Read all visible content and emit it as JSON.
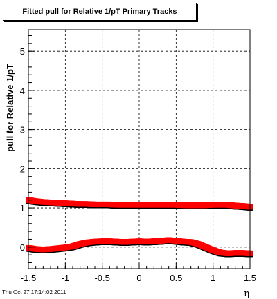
{
  "chart_data": {
    "type": "scatter",
    "title": "Fitted pull for Relative 1/pT  Primary Tracks",
    "xlabel": "η",
    "ylabel": "pull for Relative 1/pT",
    "xlim": [
      -1.5,
      1.5
    ],
    "ylim": [
      -0.55,
      5.55
    ],
    "xticks": [
      -1.5,
      -1,
      -0.5,
      0,
      0.5,
      1,
      1.5
    ],
    "xtick_labels": [
      "-1.5",
      "-1",
      "-0.5",
      "0",
      "0.5",
      "1",
      "1.5"
    ],
    "yticks": [
      0,
      1,
      2,
      3,
      4,
      5
    ],
    "ytick_labels": [
      "0",
      "1",
      "2",
      "3",
      "4",
      "5"
    ],
    "grid": true,
    "series": [
      {
        "color": "#ff0000",
        "x": [
          -1.5,
          -1.4,
          -1.3,
          -1.2,
          -1.1,
          -1.0,
          -0.9,
          -0.8,
          -0.7,
          -0.6,
          -0.5,
          -0.4,
          -0.3,
          -0.2,
          -0.1,
          0.0,
          0.1,
          0.2,
          0.3,
          0.4,
          0.5,
          0.6,
          0.7,
          0.8,
          0.9,
          1.0,
          1.1,
          1.2,
          1.3,
          1.4,
          1.5
        ],
        "values": [
          1.2,
          1.17,
          1.15,
          1.14,
          1.13,
          1.12,
          1.11,
          1.1,
          1.1,
          1.09,
          1.09,
          1.09,
          1.08,
          1.08,
          1.08,
          1.08,
          1.08,
          1.08,
          1.08,
          1.08,
          1.08,
          1.07,
          1.07,
          1.07,
          1.07,
          1.08,
          1.08,
          1.08,
          1.06,
          1.05,
          1.03
        ]
      },
      {
        "color": "#ff0000",
        "x": [
          -1.5,
          -1.4,
          -1.3,
          -1.2,
          -1.1,
          -1.0,
          -0.9,
          -0.8,
          -0.7,
          -0.6,
          -0.5,
          -0.4,
          -0.3,
          -0.2,
          -0.1,
          0.0,
          0.1,
          0.2,
          0.3,
          0.4,
          0.5,
          0.6,
          0.7,
          0.8,
          0.9,
          1.0,
          1.1,
          1.2,
          1.3,
          1.4,
          1.5
        ],
        "values": [
          -0.02,
          -0.05,
          -0.06,
          -0.05,
          -0.03,
          -0.01,
          0.02,
          0.08,
          0.12,
          0.14,
          0.15,
          0.15,
          0.14,
          0.13,
          0.14,
          0.15,
          0.14,
          0.15,
          0.16,
          0.18,
          0.16,
          0.14,
          0.13,
          0.08,
          0.0,
          -0.08,
          -0.14,
          -0.16,
          -0.15,
          -0.15,
          -0.16
        ]
      }
    ]
  },
  "timestamp": "Thu Oct 27 17:14:02 2011"
}
